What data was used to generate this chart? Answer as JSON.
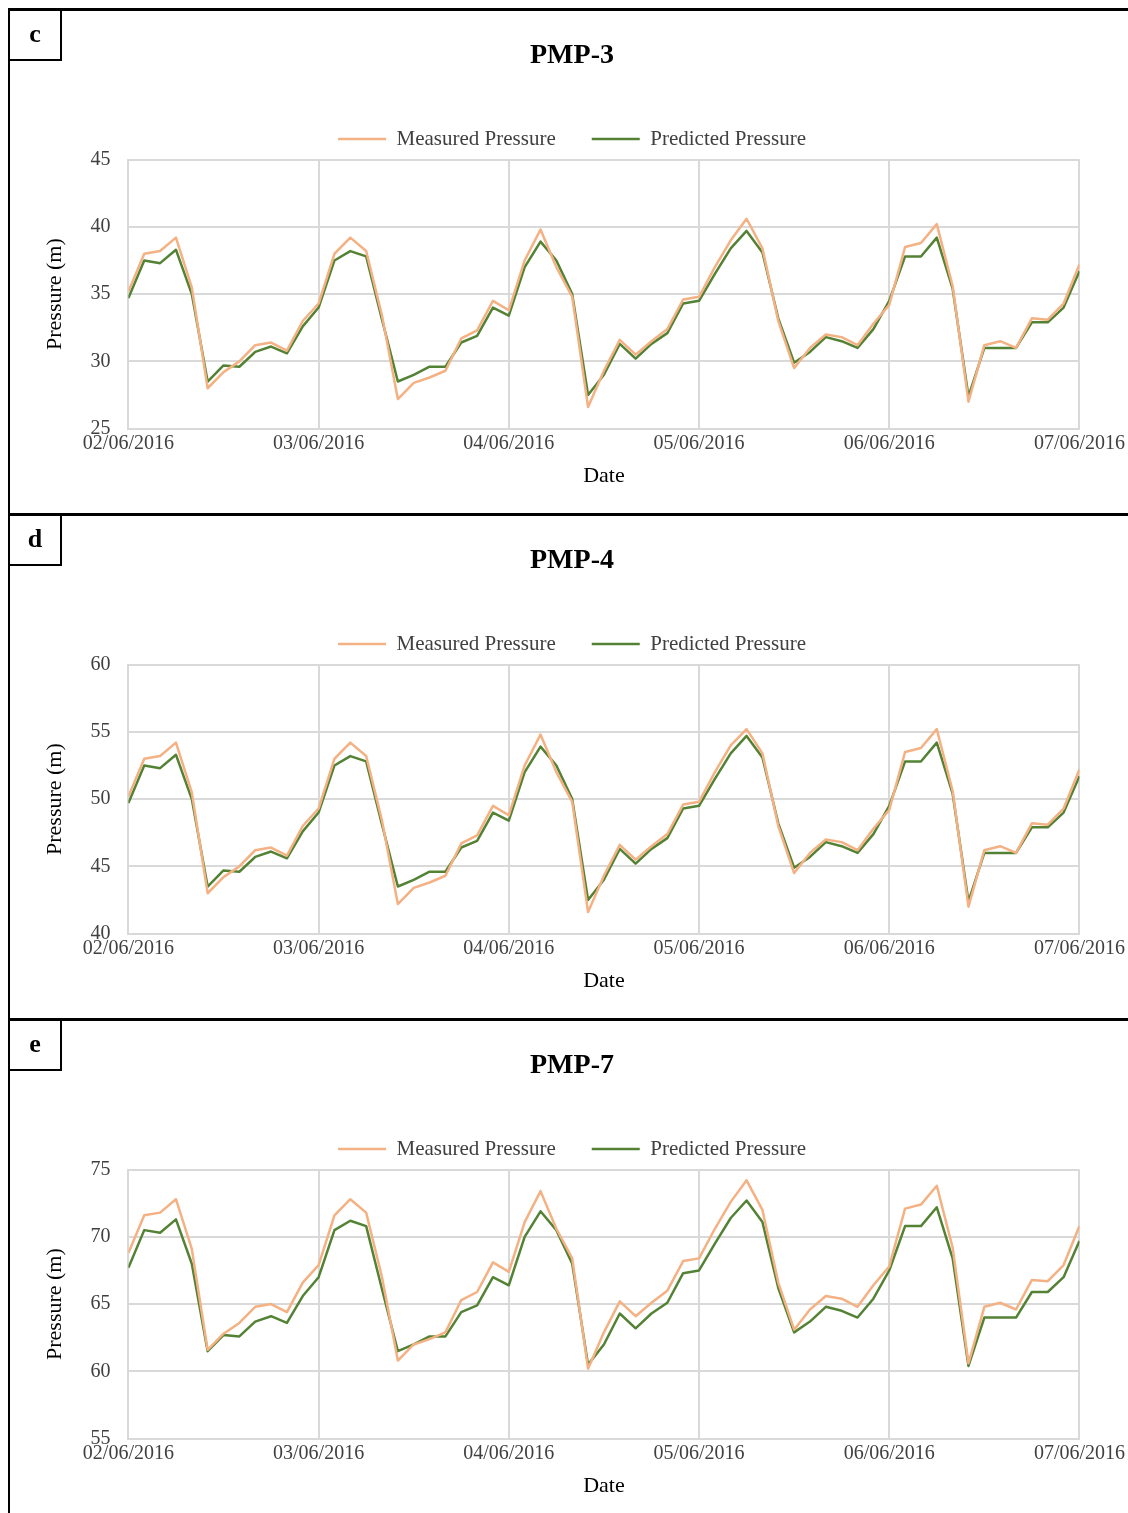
{
  "chart_data": [
    {
      "type": "line",
      "title": "PMP-3",
      "xlabel": "Date",
      "ylabel": "Pressure (m)",
      "annotations": [
        "c"
      ],
      "legend": "top",
      "grid": true,
      "marker": "none",
      "line_style": "solid",
      "x": [
        "2016-06-02T00:00",
        "2016-06-02T02:00",
        "2016-06-02T04:00",
        "2016-06-02T06:00",
        "2016-06-02T08:00",
        "2016-06-02T10:00",
        "2016-06-02T12:00",
        "2016-06-02T14:00",
        "2016-06-02T16:00",
        "2016-06-02T18:00",
        "2016-06-02T20:00",
        "2016-06-02T22:00",
        "2016-06-03T00:00",
        "2016-06-03T02:00",
        "2016-06-03T04:00",
        "2016-06-03T06:00",
        "2016-06-03T08:00",
        "2016-06-03T10:00",
        "2016-06-03T12:00",
        "2016-06-03T14:00",
        "2016-06-03T16:00",
        "2016-06-03T18:00",
        "2016-06-03T20:00",
        "2016-06-03T22:00",
        "2016-06-04T00:00",
        "2016-06-04T02:00",
        "2016-06-04T04:00",
        "2016-06-04T06:00",
        "2016-06-04T08:00",
        "2016-06-04T10:00",
        "2016-06-04T12:00",
        "2016-06-04T14:00",
        "2016-06-04T16:00",
        "2016-06-04T18:00",
        "2016-06-04T20:00",
        "2016-06-04T22:00",
        "2016-06-05T00:00",
        "2016-06-05T02:00",
        "2016-06-05T04:00",
        "2016-06-05T06:00",
        "2016-06-05T08:00",
        "2016-06-05T10:00",
        "2016-06-05T12:00",
        "2016-06-05T14:00",
        "2016-06-05T16:00",
        "2016-06-05T18:00",
        "2016-06-05T20:00",
        "2016-06-05T22:00",
        "2016-06-06T00:00",
        "2016-06-06T02:00",
        "2016-06-06T04:00",
        "2016-06-06T06:00",
        "2016-06-06T08:00",
        "2016-06-06T10:00",
        "2016-06-06T12:00",
        "2016-06-06T14:00",
        "2016-06-06T16:00",
        "2016-06-06T18:00",
        "2016-06-06T20:00",
        "2016-06-06T22:00",
        "2016-06-07T00:00"
      ],
      "xlim": [
        "2016-06-02",
        "2016-06-07"
      ],
      "xticks": [
        {
          "value": "2016-06-02",
          "label": "02/06/2016"
        },
        {
          "value": "2016-06-03",
          "label": "03/06/2016"
        },
        {
          "value": "2016-06-04",
          "label": "04/06/2016"
        },
        {
          "value": "2016-06-05",
          "label": "05/06/2016"
        },
        {
          "value": "2016-06-06",
          "label": "06/06/2016"
        },
        {
          "value": "2016-06-07",
          "label": "07/06/2016"
        }
      ],
      "ylim": [
        25,
        45
      ],
      "yticks": [
        25,
        30,
        35,
        40,
        45
      ],
      "series": [
        {
          "name": "Measured Pressure",
          "color": "#f4b183",
          "values": [
            35.2,
            38,
            38.2,
            39.2,
            35.5,
            28,
            29.2,
            30,
            31.2,
            31.4,
            30.8,
            33,
            34.3,
            38,
            39.2,
            38.2,
            33.4,
            27.2,
            28.4,
            28.8,
            29.3,
            31.7,
            32.3,
            34.5,
            33.8,
            37.5,
            39.8,
            37,
            34.8,
            26.6,
            29.3,
            31.6,
            30.5,
            31.5,
            32.4,
            34.6,
            34.8,
            37,
            39,
            40.6,
            38.4,
            33,
            29.5,
            31,
            32,
            31.8,
            31.2,
            32.8,
            34.2,
            38.5,
            38.8,
            40.2,
            35.6,
            27,
            31.2,
            31.5,
            31,
            33.2,
            33.1,
            34.3,
            37.2
          ]
        },
        {
          "name": "Predicted Pressure",
          "color": "#548235",
          "values": [
            34.7,
            37.5,
            37.3,
            38.3,
            35,
            28.5,
            29.7,
            29.6,
            30.7,
            31.1,
            30.6,
            32.6,
            34,
            37.5,
            38.2,
            37.8,
            33.1,
            28.5,
            29,
            29.6,
            29.6,
            31.4,
            31.9,
            34,
            33.4,
            37,
            38.9,
            37.5,
            35,
            27.5,
            29,
            31.3,
            30.2,
            31.3,
            32.1,
            34.3,
            34.5,
            36.5,
            38.4,
            39.7,
            38.1,
            33.2,
            29.9,
            30.7,
            31.8,
            31.5,
            31,
            32.4,
            34.5,
            37.8,
            37.8,
            39.2,
            35.4,
            27.4,
            31,
            31,
            31,
            32.9,
            32.9,
            34,
            36.7
          ]
        }
      ]
    },
    {
      "type": "line",
      "title": "PMP-4",
      "xlabel": "Date",
      "ylabel": "Pressure (m)",
      "annotations": [
        "d"
      ],
      "legend": "top",
      "grid": true,
      "marker": "none",
      "line_style": "solid",
      "x": [
        "2016-06-02T00:00",
        "2016-06-02T02:00",
        "2016-06-02T04:00",
        "2016-06-02T06:00",
        "2016-06-02T08:00",
        "2016-06-02T10:00",
        "2016-06-02T12:00",
        "2016-06-02T14:00",
        "2016-06-02T16:00",
        "2016-06-02T18:00",
        "2016-06-02T20:00",
        "2016-06-02T22:00",
        "2016-06-03T00:00",
        "2016-06-03T02:00",
        "2016-06-03T04:00",
        "2016-06-03T06:00",
        "2016-06-03T08:00",
        "2016-06-03T10:00",
        "2016-06-03T12:00",
        "2016-06-03T14:00",
        "2016-06-03T16:00",
        "2016-06-03T18:00",
        "2016-06-03T20:00",
        "2016-06-03T22:00",
        "2016-06-04T00:00",
        "2016-06-04T02:00",
        "2016-06-04T04:00",
        "2016-06-04T06:00",
        "2016-06-04T08:00",
        "2016-06-04T10:00",
        "2016-06-04T12:00",
        "2016-06-04T14:00",
        "2016-06-04T16:00",
        "2016-06-04T18:00",
        "2016-06-04T20:00",
        "2016-06-04T22:00",
        "2016-06-05T00:00",
        "2016-06-05T02:00",
        "2016-06-05T04:00",
        "2016-06-05T06:00",
        "2016-06-05T08:00",
        "2016-06-05T10:00",
        "2016-06-05T12:00",
        "2016-06-05T14:00",
        "2016-06-05T16:00",
        "2016-06-05T18:00",
        "2016-06-05T20:00",
        "2016-06-05T22:00",
        "2016-06-06T00:00",
        "2016-06-06T02:00",
        "2016-06-06T04:00",
        "2016-06-06T06:00",
        "2016-06-06T08:00",
        "2016-06-06T10:00",
        "2016-06-06T12:00",
        "2016-06-06T14:00",
        "2016-06-06T16:00",
        "2016-06-06T18:00",
        "2016-06-06T20:00",
        "2016-06-06T22:00",
        "2016-06-07T00:00"
      ],
      "xlim": [
        "2016-06-02",
        "2016-06-07"
      ],
      "xticks": [
        {
          "value": "2016-06-02",
          "label": "02/06/2016"
        },
        {
          "value": "2016-06-03",
          "label": "03/06/2016"
        },
        {
          "value": "2016-06-04",
          "label": "04/06/2016"
        },
        {
          "value": "2016-06-05",
          "label": "05/06/2016"
        },
        {
          "value": "2016-06-06",
          "label": "06/06/2016"
        },
        {
          "value": "2016-06-07",
          "label": "07/06/2016"
        }
      ],
      "ylim": [
        40,
        60
      ],
      "yticks": [
        40,
        45,
        50,
        55,
        60
      ],
      "series": [
        {
          "name": "Measured Pressure",
          "color": "#f4b183",
          "values": [
            50.2,
            53,
            53.2,
            54.2,
            50.5,
            43,
            44.2,
            45,
            46.2,
            46.4,
            45.8,
            48,
            49.3,
            53,
            54.2,
            53.2,
            48.4,
            42.2,
            43.4,
            43.8,
            44.3,
            46.7,
            47.3,
            49.5,
            48.8,
            52.5,
            54.8,
            52,
            49.8,
            41.6,
            44.3,
            46.6,
            45.5,
            46.5,
            47.4,
            49.6,
            49.8,
            52,
            54,
            55.2,
            53.4,
            48,
            44.5,
            46,
            47,
            46.8,
            46.2,
            47.8,
            49.2,
            53.5,
            53.8,
            55.2,
            50.6,
            42,
            46.2,
            46.5,
            46,
            48.2,
            48.1,
            49.3,
            52.2
          ]
        },
        {
          "name": "Predicted Pressure",
          "color": "#548235",
          "values": [
            49.7,
            52.5,
            52.3,
            53.3,
            50,
            43.5,
            44.7,
            44.6,
            45.7,
            46.1,
            45.6,
            47.6,
            49,
            52.5,
            53.2,
            52.8,
            48.1,
            43.5,
            44,
            44.6,
            44.6,
            46.4,
            46.9,
            49,
            48.4,
            52,
            53.9,
            52.5,
            50,
            42.5,
            44,
            46.3,
            45.2,
            46.3,
            47.1,
            49.3,
            49.5,
            51.5,
            53.4,
            54.7,
            53.1,
            48.2,
            44.9,
            45.7,
            46.8,
            46.5,
            46,
            47.4,
            49.5,
            52.8,
            52.8,
            54.2,
            50.4,
            42.4,
            46,
            46,
            46,
            47.9,
            47.9,
            49,
            51.7
          ]
        }
      ]
    },
    {
      "type": "line",
      "title": "PMP-7",
      "xlabel": "Date",
      "ylabel": "Pressure (m)",
      "annotations": [
        "e"
      ],
      "legend": "top",
      "grid": true,
      "marker": "none",
      "line_style": "solid",
      "x": [
        "2016-06-02T00:00",
        "2016-06-02T02:00",
        "2016-06-02T04:00",
        "2016-06-02T06:00",
        "2016-06-02T08:00",
        "2016-06-02T10:00",
        "2016-06-02T12:00",
        "2016-06-02T14:00",
        "2016-06-02T16:00",
        "2016-06-02T18:00",
        "2016-06-02T20:00",
        "2016-06-02T22:00",
        "2016-06-03T00:00",
        "2016-06-03T02:00",
        "2016-06-03T04:00",
        "2016-06-03T06:00",
        "2016-06-03T08:00",
        "2016-06-03T10:00",
        "2016-06-03T12:00",
        "2016-06-03T14:00",
        "2016-06-03T16:00",
        "2016-06-03T18:00",
        "2016-06-03T20:00",
        "2016-06-03T22:00",
        "2016-06-04T00:00",
        "2016-06-04T02:00",
        "2016-06-04T04:00",
        "2016-06-04T06:00",
        "2016-06-04T08:00",
        "2016-06-04T10:00",
        "2016-06-04T12:00",
        "2016-06-04T14:00",
        "2016-06-04T16:00",
        "2016-06-04T18:00",
        "2016-06-04T20:00",
        "2016-06-04T22:00",
        "2016-06-05T00:00",
        "2016-06-05T02:00",
        "2016-06-05T04:00",
        "2016-06-05T06:00",
        "2016-06-05T08:00",
        "2016-06-05T10:00",
        "2016-06-05T12:00",
        "2016-06-05T14:00",
        "2016-06-05T16:00",
        "2016-06-05T18:00",
        "2016-06-05T20:00",
        "2016-06-05T22:00",
        "2016-06-06T00:00",
        "2016-06-06T02:00",
        "2016-06-06T04:00",
        "2016-06-06T06:00",
        "2016-06-06T08:00",
        "2016-06-06T10:00",
        "2016-06-06T12:00",
        "2016-06-06T14:00",
        "2016-06-06T16:00",
        "2016-06-06T18:00",
        "2016-06-06T20:00",
        "2016-06-06T22:00",
        "2016-06-07T00:00"
      ],
      "xlim": [
        "2016-06-02",
        "2016-06-07"
      ],
      "xticks": [
        {
          "value": "2016-06-02",
          "label": "02/06/2016"
        },
        {
          "value": "2016-06-03",
          "label": "03/06/2016"
        },
        {
          "value": "2016-06-04",
          "label": "04/06/2016"
        },
        {
          "value": "2016-06-05",
          "label": "05/06/2016"
        },
        {
          "value": "2016-06-06",
          "label": "06/06/2016"
        },
        {
          "value": "2016-06-07",
          "label": "07/06/2016"
        }
      ],
      "ylim": [
        55,
        75
      ],
      "yticks": [
        55,
        60,
        65,
        70,
        75
      ],
      "series": [
        {
          "name": "Measured Pressure",
          "color": "#f4b183",
          "values": [
            68.8,
            71.6,
            71.8,
            72.8,
            69.1,
            61.6,
            62.8,
            63.6,
            64.8,
            65,
            64.4,
            66.6,
            67.9,
            71.6,
            72.8,
            71.8,
            67,
            60.8,
            62,
            62.4,
            62.9,
            65.3,
            65.9,
            68.1,
            67.4,
            71.1,
            73.4,
            70.6,
            68.4,
            60.2,
            62.9,
            65.2,
            64.1,
            65.1,
            66,
            68.2,
            68.4,
            70.6,
            72.6,
            74.2,
            72,
            66.6,
            63.1,
            64.6,
            65.6,
            65.4,
            64.8,
            66.4,
            67.8,
            72.1,
            72.4,
            73.8,
            69.2,
            60.6,
            64.8,
            65.1,
            64.6,
            66.8,
            66.7,
            67.9,
            70.8
          ]
        },
        {
          "name": "Predicted Pressure",
          "color": "#548235",
          "values": [
            67.7,
            70.5,
            70.3,
            71.3,
            68,
            61.5,
            62.7,
            62.6,
            63.7,
            64.1,
            63.6,
            65.6,
            67,
            70.5,
            71.2,
            70.8,
            66.1,
            61.5,
            62,
            62.6,
            62.6,
            64.4,
            64.9,
            67,
            66.4,
            70,
            71.9,
            70.5,
            68,
            60.5,
            62,
            64.3,
            63.2,
            64.3,
            65.1,
            67.3,
            67.5,
            69.5,
            71.4,
            72.7,
            71.1,
            66.2,
            62.9,
            63.7,
            64.8,
            64.5,
            64,
            65.4,
            67.5,
            70.8,
            70.8,
            72.2,
            68.4,
            60.4,
            64,
            64,
            64,
            65.9,
            65.9,
            67,
            69.7
          ]
        }
      ]
    }
  ]
}
